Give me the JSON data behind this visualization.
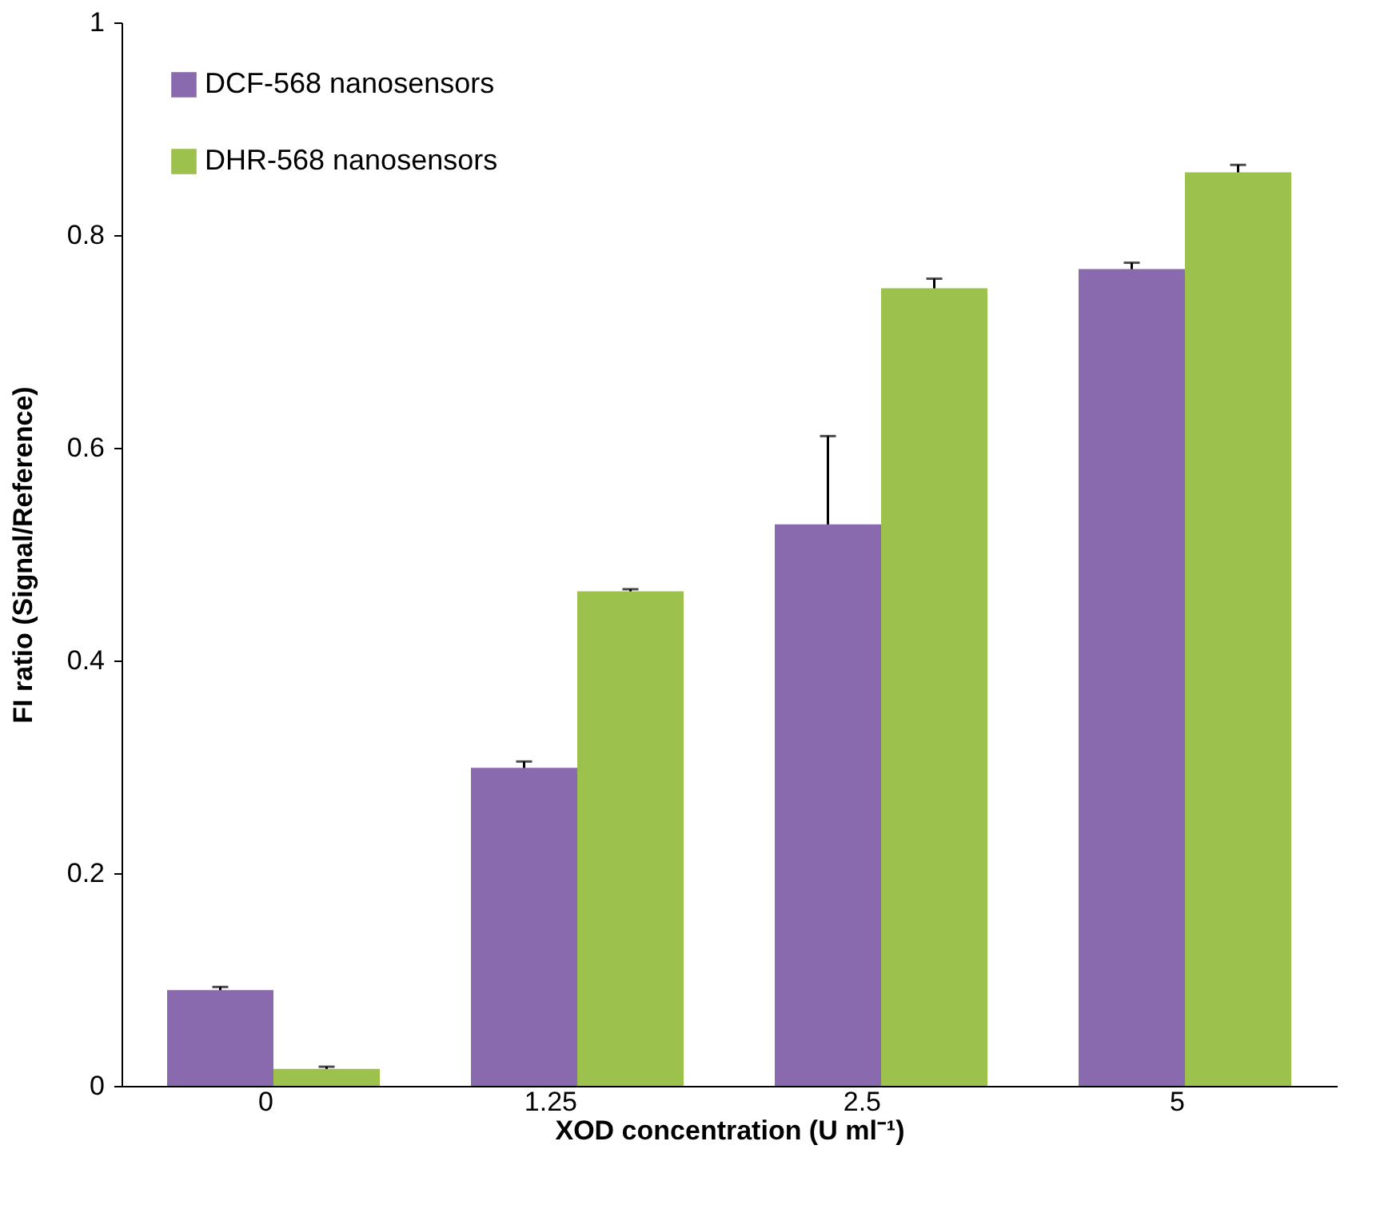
{
  "chart_data": {
    "type": "bar",
    "xlabel": "XOD concentration (U ml⁻¹)",
    "ylabel": "FI ratio (Signal/Reference)",
    "categories": [
      "0",
      "1.25",
      "2.5",
      "5"
    ],
    "series": [
      {
        "name": "DCF-568 nanosensors",
        "color": "#8a6aae",
        "values": [
          0.09,
          0.299,
          0.528,
          0.768
        ],
        "errors": [
          0.003,
          0.006,
          0.083,
          0.006
        ]
      },
      {
        "name": "DHR-568 nanosensors",
        "color": "#9cc14c",
        "values": [
          0.016,
          0.465,
          0.75,
          0.859
        ],
        "errors": [
          0.002,
          0.002,
          0.009,
          0.007
        ]
      }
    ],
    "ylim": [
      0,
      1
    ],
    "yticks": [
      0,
      0.2,
      0.4,
      0.6,
      0.8,
      1
    ],
    "grid": false,
    "legend": "top left"
  }
}
